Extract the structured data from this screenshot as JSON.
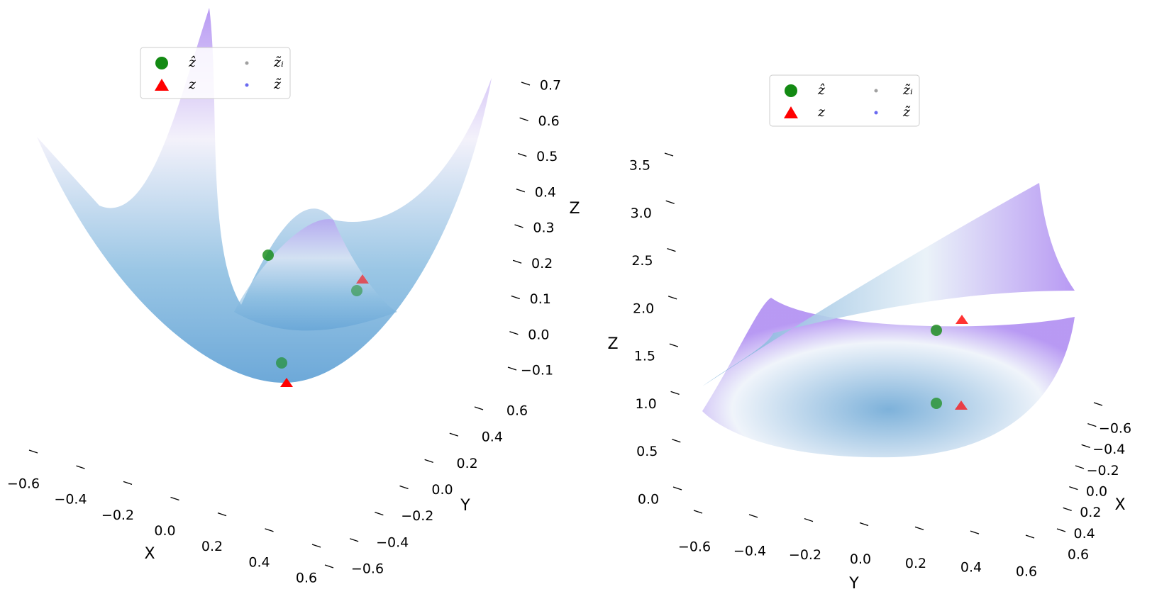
{
  "chart_data": [
    {
      "type": "surface3d",
      "xlabel": "X",
      "ylabel": "Y",
      "zlabel": "Z",
      "legend": [
        {
          "name": "ẑ",
          "color": "#138a13",
          "marker": "circle"
        },
        {
          "name": "z",
          "color": "#ff0000",
          "marker": "triangle"
        },
        {
          "name": "z̃ᵢ",
          "color": "#a0a0a0",
          "marker": "dot"
        },
        {
          "name": "z̃",
          "color": "#6a6af0",
          "marker": "dot"
        }
      ],
      "xlim": [
        -0.6,
        0.6
      ],
      "ylim": [
        -0.6,
        0.6
      ],
      "zlim": [
        -0.1,
        0.7
      ],
      "xticks": [
        {
          "value": -0.6,
          "label": "−0.6"
        },
        {
          "value": -0.4,
          "label": "−0.4"
        },
        {
          "value": -0.2,
          "label": "−0.2"
        },
        {
          "value": 0,
          "label": "0.0"
        },
        0.2,
        0.4,
        0.6
      ],
      "yticks": [
        {
          "value": -0.6,
          "label": "−0.6"
        },
        {
          "value": -0.4,
          "label": "−0.4"
        },
        {
          "value": -0.2,
          "label": "−0.2"
        },
        {
          "value": 0,
          "label": "0.0"
        },
        0.2,
        0.4,
        0.6
      ],
      "zticks": [
        {
          "value": -0.1,
          "label": "−0.1"
        },
        {
          "value": 0,
          "label": "0.0"
        },
        0.1,
        0.2,
        0.3,
        0.4,
        0.5,
        0.6,
        0.7
      ]
    },
    {
      "type": "surface3d",
      "xlabel": "X",
      "ylabel": "Y",
      "zlabel": "Z",
      "legend": [
        {
          "name": "ẑ",
          "color": "#138a13",
          "marker": "circle"
        },
        {
          "name": "z",
          "color": "#ff0000",
          "marker": "triangle"
        },
        {
          "name": "z̃ᵢ",
          "color": "#a0a0a0",
          "marker": "dot"
        },
        {
          "name": "z̃",
          "color": "#6a6af0",
          "marker": "dot"
        }
      ],
      "xlim": [
        -0.6,
        0.6
      ],
      "ylim": [
        -0.6,
        0.6
      ],
      "zlim": [
        0,
        3.5
      ],
      "xticks": [
        {
          "value": -0.6,
          "label": "−0.6"
        },
        {
          "value": -0.4,
          "label": "−0.4"
        },
        {
          "value": -0.2,
          "label": "−0.2"
        },
        {
          "value": 0,
          "label": "0.0"
        },
        0.2,
        0.4,
        0.6
      ],
      "yticks": [
        {
          "value": -0.6,
          "label": "−0.6"
        },
        {
          "value": -0.4,
          "label": "−0.4"
        },
        {
          "value": -0.2,
          "label": "−0.2"
        },
        {
          "value": 0,
          "label": "0.0"
        },
        0.2,
        0.4,
        0.6
      ],
      "zticks": [
        {
          "value": 0,
          "label": "0.0"
        },
        0.5,
        {
          "value": 1,
          "label": "1.0"
        },
        1.5,
        {
          "value": 2,
          "label": "2.0"
        },
        2.5,
        {
          "value": 3,
          "label": "3.0"
        },
        3.5
      ]
    }
  ]
}
